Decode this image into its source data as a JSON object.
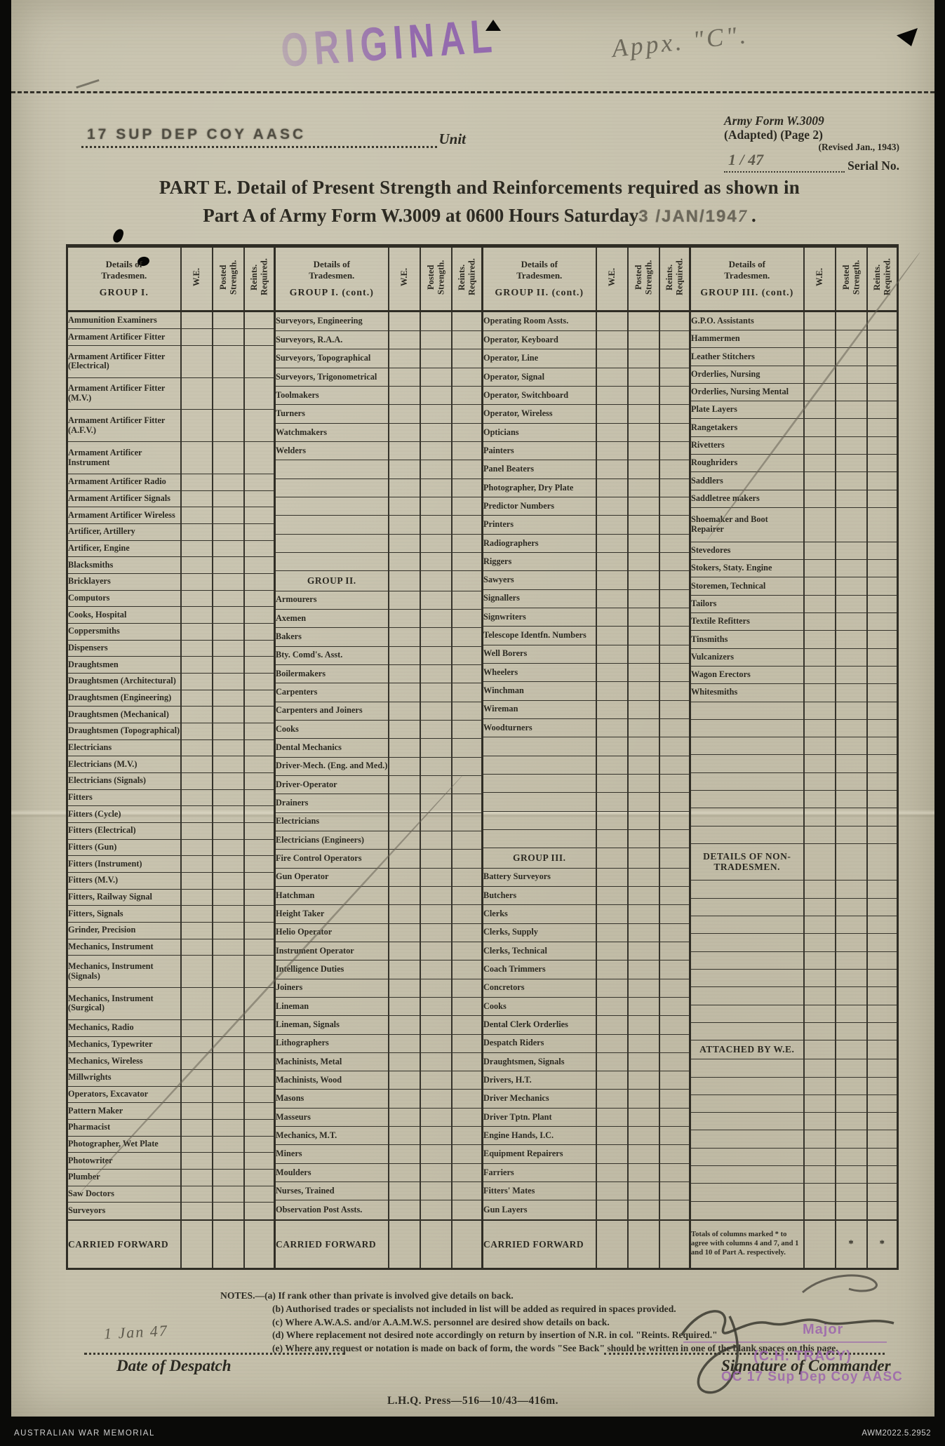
{
  "stamps": {
    "original": "ORIGINAL",
    "appx_annotation": "Appx. \"C\".",
    "unit_stamp": "17 SUP DEP COY AASC",
    "despatch_date": "1 Jan 47",
    "major": "Major",
    "commander_name_stamp": "(C.H. TRACY)",
    "commander_unit_stamp": "OC 17 Sup Dep Coy AASC"
  },
  "form_ref": {
    "line1": "Army Form W.3009",
    "line2": "(Adapted)  (Page 2)",
    "line3": "(Revised Jan., 1943)",
    "serial_value": "1 / 47",
    "serial_label": "Serial No."
  },
  "unit_label": "Unit",
  "title": {
    "line1": "PART E.  Detail of Present Strength and Reinforcements required as shown in",
    "line2_prefix": "Part A of Army Form W.3009 at 0600 Hours Saturday",
    "line2_stamp": "3  /JAN/194",
    "line2_hand": "7",
    "line2_suffix": " ."
  },
  "table": {
    "details_line1": "Details of",
    "details_line2": "Tradesmen.",
    "col_headers": {
      "we": "W.E.",
      "posted": "Posted Strength.",
      "reints": "Reints. Required."
    },
    "carried_forward_label": "CARRIED FORWARD",
    "totals_note": "Totals of columns marked * to agree with columns 4 and 7, and 1 and 10 of Part A. respectively.",
    "asterisk": "*",
    "groups": [
      {
        "name": "GROUP I.",
        "rows": [
          "Ammunition Examiners",
          "Armament Artificer Fitter",
          "Armament Artificer Fitter (Electrical)",
          "Armament Artificer Fitter (M.V.)",
          "Armament Artificer Fitter (A.F.V.)",
          "Armament Artificer Instrument",
          "Armament Artificer Radio",
          "Armament Artificer Signals",
          "Armament Artificer Wireless",
          "Artificer, Artillery",
          "Artificer, Engine",
          "Blacksmiths",
          "Bricklayers",
          "Computors",
          "Cooks, Hospital",
          "Coppersmiths",
          "Dispensers",
          "Draughtsmen",
          "Draughtsmen (Architectural)",
          "Draughtsmen (Engineering)",
          "Draughtsmen (Mechanical)",
          "Draughtsmen (Topographical)",
          "Electricians",
          "Electricians (M.V.)",
          "Electricians (Signals)",
          "Fitters",
          "Fitters (Cycle)",
          "Fitters (Electrical)",
          "Fitters (Gun)",
          "Fitters (Instrument)",
          "Fitters (M.V.)",
          "Fitters, Railway Signal",
          "Fitters, Signals",
          "Grinder, Precision",
          "Mechanics, Instrument",
          "Mechanics, Instrument (Signals)",
          "Mechanics, Instrument (Surgical)",
          "Mechanics, Radio",
          "Mechanics, Typewriter",
          "Mechanics, Wireless",
          "Millwrights",
          "Operators, Excavator",
          "Pattern Maker",
          "Pharmacist",
          "Photographer, Wet Plate",
          "Photowriter",
          "Plumber",
          "Saw Doctors",
          "Surveyors"
        ]
      },
      {
        "name": "GROUP I. (cont.)",
        "rows": [
          "Surveyors, Engineering",
          "Surveyors, R.A.A.",
          "Surveyors, Topographical",
          "Surveyors, Trigonometrical",
          "Toolmakers",
          "Turners",
          "Watchmakers",
          "Welders",
          "",
          "",
          "",
          "",
          "",
          "",
          {
            "s": "GROUP II."
          },
          "Armourers",
          "Axemen",
          "Bakers",
          "Bty. Comd's. Asst.",
          "Boilermakers",
          "Carpenters",
          "Carpenters and Joiners",
          "Cooks",
          "Dental Mechanics",
          "Driver-Mech. (Eng. and Med.)",
          "Driver-Operator",
          "Drainers",
          "Electricians",
          "Electricians (Engineers)",
          "Fire Control Operators",
          "Gun Operator",
          "Hatchman",
          "Height Taker",
          "Helio Operator",
          "Instrument Operator",
          "Intelligence Duties",
          "Joiners",
          "Lineman",
          "Lineman, Signals",
          "Lithographers",
          "Machinists, Metal",
          "Machinists, Wood",
          "Masons",
          "Masseurs",
          "Mechanics, M.T.",
          "Miners",
          "Moulders",
          "Nurses, Trained",
          "Observation Post Assts."
        ]
      },
      {
        "name": "GROUP II. (cont.)",
        "rows": [
          "Operating Room Assts.",
          "Operator, Keyboard",
          "Operator, Line",
          "Operator, Signal",
          "Operator, Switchboard",
          "Operator, Wireless",
          "Opticians",
          "Painters",
          "Panel Beaters",
          "Photographer, Dry Plate",
          "Predictor Numbers",
          "Printers",
          "Radiographers",
          "Riggers",
          "Sawyers",
          "Signallers",
          "Signwriters",
          "Telescope Identfn. Numbers",
          "Well Borers",
          "Wheelers",
          "Winchman",
          "Wireman",
          "Woodturners",
          "",
          "",
          "",
          "",
          "",
          "",
          {
            "s": "GROUP III."
          },
          "Battery Surveyors",
          "Butchers",
          "Clerks",
          "Clerks, Supply",
          "Clerks, Technical",
          "Coach Trimmers",
          "Concretors",
          "Cooks",
          "Dental Clerk Orderlies",
          "Despatch Riders",
          "Draughtsmen, Signals",
          "Drivers, H.T.",
          "Driver Mechanics",
          "Driver Tptn. Plant",
          "Engine Hands, I.C.",
          "Equipment Repairers",
          "Farriers",
          "Fitters' Mates",
          "Gun Layers"
        ]
      },
      {
        "name": "GROUP III. (cont.)",
        "rows": [
          "G.P.O. Assistants",
          "Hammermen",
          "Leather Stitchers",
          "Orderlies, Nursing",
          "Orderlies, Nursing Mental",
          "Plate Layers",
          "Rangetakers",
          "Rivetters",
          "Roughriders",
          "Saddlers",
          "Saddletree makers",
          "Shoemaker and Boot Repairer",
          "Stevedores",
          "Stokers, Staty. Engine",
          "Storemen, Technical",
          "Tailors",
          "Textile Refitters",
          "Tinsmiths",
          "Vulcanizers",
          "Wagon Erectors",
          "Whitesmiths",
          "",
          "",
          "",
          "",
          "",
          "",
          "",
          "",
          {
            "s": "DETAILS OF NON-TRADESMEN."
          },
          "",
          "",
          "",
          "",
          "",
          "",
          "",
          "",
          "",
          {
            "s": "ATTACHED BY W.E."
          },
          "",
          "",
          "",
          "",
          "",
          "",
          "",
          "",
          ""
        ]
      }
    ]
  },
  "notes": {
    "lines": [
      "NOTES.—(a) If rank other than private is involved give details on back.",
      "(b) Authorised trades or specialists not included in list will be added as required in spaces provided.",
      "(c) Where A.W.A.S. and/or A.A.M.W.S. personnel are desired show details on back.",
      "(d) Where replacement not desired note accordingly on return by insertion of N.R. in col. \"Reints. Required.\"",
      "(e) Where any request or notation is made on back of form, the words \"See Back\" should be written in one of the blank spaces on this page."
    ]
  },
  "signature": {
    "date_label": "Date of Despatch",
    "commander_label": "Signature of Commander"
  },
  "footer": {
    "press_line": "L.H.Q.   Press—516—10/43—416m."
  },
  "archive": {
    "source": "AUSTRALIAN WAR MEMORIAL",
    "reference": "AWM2022.5.2952"
  }
}
